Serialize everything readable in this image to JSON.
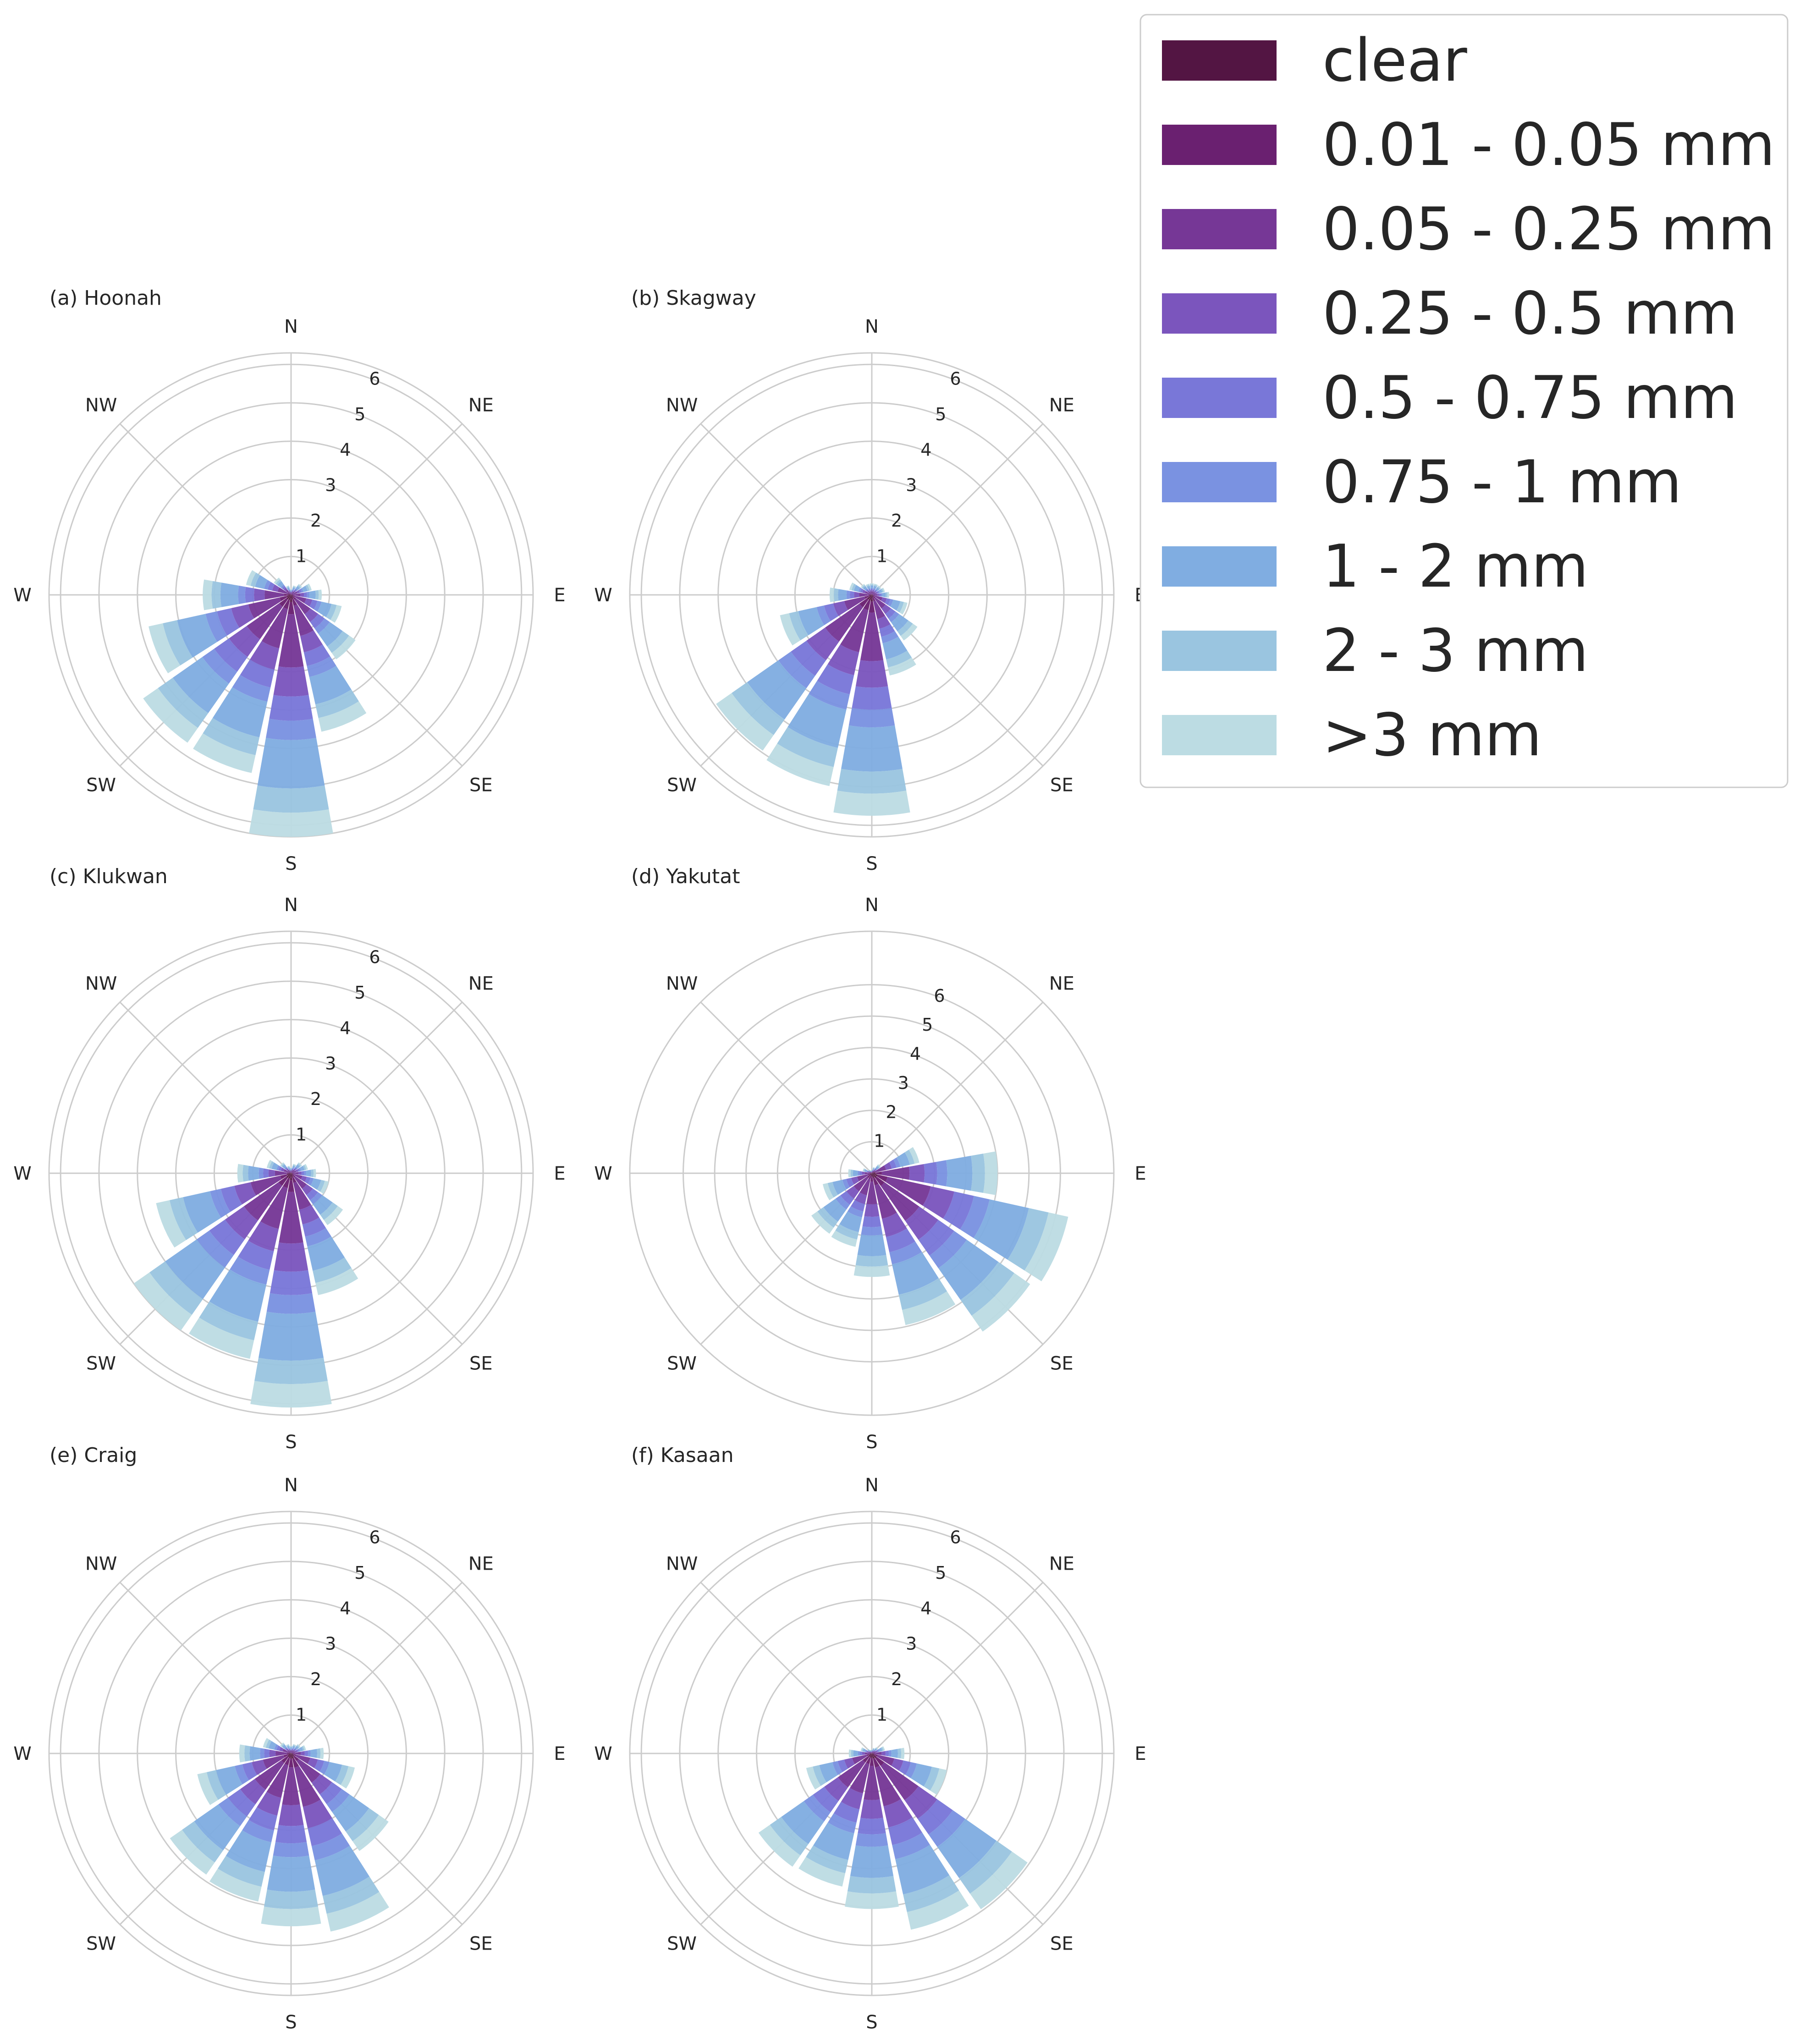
{
  "chart_data": {
    "type": "windrose",
    "r_ticks": [
      1,
      2,
      3,
      4,
      5,
      6
    ],
    "directions": [
      "N",
      "NE",
      "E",
      "SE",
      "S",
      "SW",
      "W",
      "NW"
    ],
    "sector_angles_deg": [
      0,
      22.5,
      45,
      67.5,
      90,
      112.5,
      135,
      157.5,
      180,
      202.5,
      225,
      247.5,
      270,
      292.5,
      315,
      337.5
    ],
    "legend": {
      "title": "",
      "placement": "top-right",
      "entries": [
        {
          "label": "clear",
          "color": "#531543"
        },
        {
          "label": "0.01 - 0.05 mm",
          "color": "#6a2070"
        },
        {
          "label": "0.05 - 0.25 mm",
          "color": "#763796"
        },
        {
          "label": "0.25 - 0.5 mm",
          "color": "#7b55bd"
        },
        {
          "label": "0.5 - 0.75 mm",
          "color": "#7977d8"
        },
        {
          "label": "0.75 - 1 mm",
          "color": "#7a92e1"
        },
        {
          "label": "1 - 2 mm",
          "color": "#80ade1"
        },
        {
          "label": "2 - 3 mm",
          "color": "#9ac5e0"
        },
        {
          "label": ">3 mm",
          "color": "#bcdce3"
        }
      ]
    },
    "panels": [
      {
        "title": "(a) Hoonah",
        "rmax": 6.3,
        "totals": [
          0.15,
          0.25,
          0.35,
          0.55,
          0.8,
          1.35,
          2.05,
          3.65,
          6.3,
          4.75,
          4.7,
          3.8,
          2.3,
          1.2,
          0.55,
          0.25
        ]
      },
      {
        "title": "(b) Skagway",
        "rmax": 6.3,
        "totals": [
          0.3,
          0.3,
          0.3,
          0.35,
          0.45,
          0.95,
          1.45,
          2.15,
          5.75,
          5.1,
          4.95,
          2.45,
          1.1,
          0.6,
          0.35,
          0.3
        ]
      },
      {
        "title": "(c) Klukwan",
        "rmax": 6.3,
        "totals": [
          0.15,
          0.25,
          0.35,
          0.45,
          0.65,
          1.0,
          1.65,
          3.25,
          6.1,
          4.95,
          5.0,
          3.6,
          1.4,
          0.65,
          0.35,
          0.2
        ]
      },
      {
        "title": "(d) Yakutat",
        "rmax": 7.7,
        "totals": [
          0.1,
          0.2,
          0.35,
          1.55,
          4.0,
          6.4,
          6.15,
          4.95,
          3.3,
          2.4,
          2.35,
          1.6,
          0.75,
          0.3,
          0.15,
          0.1
        ]
      },
      {
        "title": "(f) Kasaan",
        "rmax": 6.3,
        "totals": [
          0.1,
          0.15,
          0.2,
          0.35,
          0.85,
          2.0,
          4.95,
          4.7,
          4.05,
          3.55,
          3.6,
          1.75,
          0.6,
          0.3,
          0.15,
          0.1
        ]
      },
      {
        "title": "(e) Craig",
        "rmax": 6.3,
        "totals": [
          0.2,
          0.25,
          0.3,
          0.4,
          0.85,
          1.7,
          3.1,
          4.75,
          4.5,
          3.95,
          3.85,
          2.5,
          1.35,
          0.75,
          0.35,
          0.25
        ]
      }
    ],
    "category_fractions": [
      0.03,
      0.05,
      0.22,
      0.12,
      0.1,
      0.08,
      0.2,
      0.1,
      0.1
    ]
  }
}
